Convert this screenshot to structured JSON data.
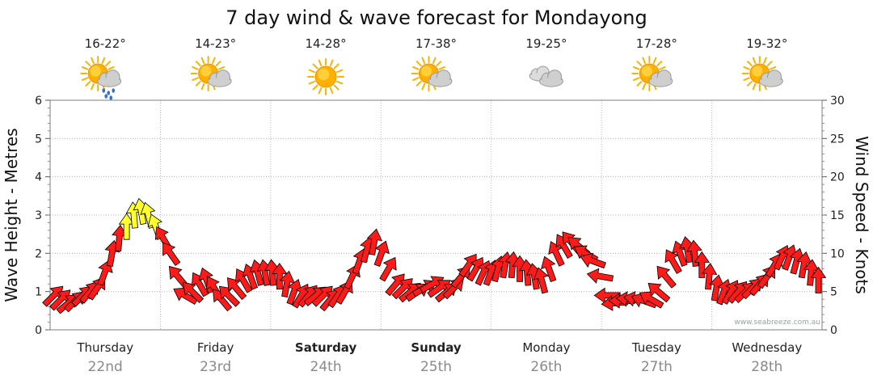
{
  "chart_data": {
    "type": "line",
    "title": "7 day wind & wave forecast for Mondayong",
    "ylabel": "Wave Height - Metres",
    "y2label": "Wind Speed - Knots",
    "ylim": [
      0,
      6
    ],
    "y2lim": [
      0,
      30
    ],
    "yticks": [
      "0",
      "1",
      "2",
      "3",
      "4",
      "5",
      "6"
    ],
    "y2ticks": [
      "0",
      "5",
      "10",
      "15",
      "20",
      "25",
      "30"
    ],
    "grid": true,
    "days": [
      {
        "name": "Thursday",
        "date": "22nd",
        "bold": false,
        "temp": "16-22°",
        "icon": "sun-cloud-rain-icon"
      },
      {
        "name": "Friday",
        "date": "23rd",
        "bold": false,
        "temp": "14-23°",
        "icon": "sun-cloud-icon"
      },
      {
        "name": "Saturday",
        "date": "24th",
        "bold": true,
        "temp": "14-28°",
        "icon": "sun-icon"
      },
      {
        "name": "Sunday",
        "date": "25th",
        "bold": true,
        "temp": "17-38°",
        "icon": "sun-cloud-icon"
      },
      {
        "name": "Monday",
        "date": "26th",
        "bold": false,
        "temp": "19-25°",
        "icon": "cloud-icon"
      },
      {
        "name": "Tuesday",
        "date": "27th",
        "bold": false,
        "temp": "17-28°",
        "icon": "sun-cloud-icon"
      },
      {
        "name": "Wednesday",
        "date": "28th",
        "bold": false,
        "temp": "19-32°",
        "icon": "sun-cloud-icon"
      }
    ],
    "series": [
      {
        "wind_knots": [
          4.5,
          4.0,
          3.5,
          3.8,
          4.5,
          5.0,
          5.5,
          7.5,
          10.0,
          12.0,
          13.5,
          15.0,
          15.5,
          15.0,
          13.5,
          12.0,
          10.0,
          7.0,
          4.5,
          5.0,
          6.0,
          6.5,
          5.5,
          4.0,
          4.5,
          5.5,
          6.5,
          7.0,
          7.5,
          7.5,
          7.5,
          7.0,
          6.0,
          5.0,
          4.5,
          4.5,
          4.5,
          4.5,
          4.0,
          4.5,
          5.0,
          7.0,
          9.0,
          10.5,
          11.5,
          10.0,
          8.0,
          6.0,
          5.5,
          5.0,
          5.0,
          5.5,
          6.0,
          5.5,
          5.0,
          5.5,
          7.0,
          8.5,
          8.0,
          7.5,
          7.5,
          8.0,
          8.5,
          8.5,
          8.0,
          7.5,
          7.0,
          6.5,
          8.0,
          10.0,
          11.0,
          11.5,
          11.0,
          10.0,
          9.0,
          7.0,
          4.5,
          3.5,
          3.8,
          4.0,
          4.0,
          3.8,
          4.0,
          5.0,
          7.0,
          9.0,
          10.0,
          10.5,
          10.0,
          8.5,
          7.0,
          5.5,
          5.0,
          5.0,
          5.0,
          5.0,
          5.5,
          6.0,
          7.0,
          8.5,
          9.5,
          9.5,
          9.0,
          8.5,
          7.5,
          6.5
        ],
        "dir_deg": [
          45,
          45,
          50,
          45,
          45,
          40,
          35,
          20,
          10,
          5,
          0,
          355,
          350,
          345,
          340,
          330,
          325,
          320,
          300,
          315,
          330,
          340,
          330,
          320,
          315,
          320,
          330,
          340,
          345,
          350,
          355,
          0,
          10,
          20,
          30,
          40,
          50,
          45,
          40,
          35,
          30,
          25,
          20,
          15,
          10,
          20,
          30,
          40,
          45,
          50,
          55,
          60,
          60,
          55,
          50,
          45,
          40,
          35,
          30,
          25,
          20,
          15,
          10,
          5,
          0,
          355,
          350,
          345,
          340,
          335,
          330,
          320,
          310,
          300,
          290,
          280,
          270,
          265,
          270,
          275,
          280,
          290,
          300,
          310,
          320,
          330,
          340,
          350,
          355,
          0,
          5,
          10,
          20,
          30,
          40,
          45,
          45,
          40,
          35,
          30,
          25,
          20,
          15,
          10,
          5,
          0
        ],
        "wave_highlight_threshold_knots": 13.5
      }
    ]
  },
  "credit_text": "www.seabreeze.com.au",
  "colors": {
    "arrow_main": "#ff1a1a",
    "arrow_strong": "#ffff2e",
    "arrow_stroke": "#000000",
    "grid": "#a8a8a8"
  }
}
